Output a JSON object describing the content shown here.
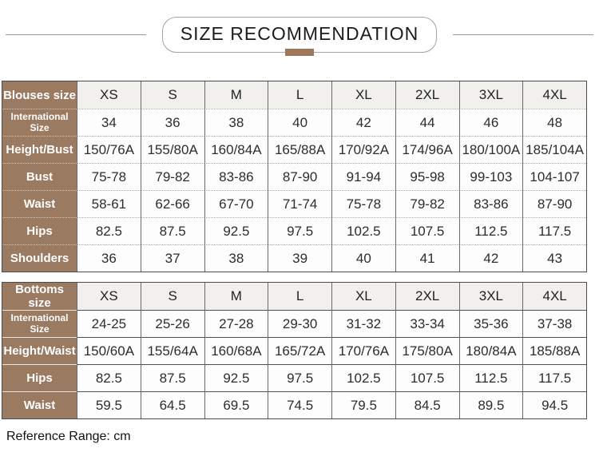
{
  "title": "SIZE RECOMMENDATION",
  "footer": "Reference Range: cm",
  "colors": {
    "brand_brown": "#9b7a62",
    "accent_bar_brown": "#a0765a",
    "size_header_bg": "#f1f0ed",
    "cell_bg": "#fdfdfd"
  },
  "blouses_table": {
    "header_label": "Blouses size",
    "sizes": [
      "XS",
      "S",
      "M",
      "L",
      "XL",
      "2XL",
      "3XL",
      "4XL"
    ],
    "rows": [
      {
        "label": "International Size",
        "values": [
          "34",
          "36",
          "38",
          "40",
          "42",
          "44",
          "46",
          "48"
        ]
      },
      {
        "label": "Height/Bust",
        "values": [
          "150/76A",
          "155/80A",
          "160/84A",
          "165/88A",
          "170/92A",
          "174/96A",
          "180/100A",
          "185/104A"
        ]
      },
      {
        "label": "Bust",
        "values": [
          "75-78",
          "79-82",
          "83-86",
          "87-90",
          "91-94",
          "95-98",
          "99-103",
          "104-107"
        ]
      },
      {
        "label": "Waist",
        "values": [
          "58-61",
          "62-66",
          "67-70",
          "71-74",
          "75-78",
          "79-82",
          "83-86",
          "87-90"
        ]
      },
      {
        "label": "Hips",
        "values": [
          "82.5",
          "87.5",
          "92.5",
          "97.5",
          "102.5",
          "107.5",
          "112.5",
          "117.5"
        ]
      },
      {
        "label": "Shoulders",
        "values": [
          "36",
          "37",
          "38",
          "39",
          "40",
          "41",
          "42",
          "43"
        ]
      }
    ]
  },
  "bottoms_table": {
    "header_label": "Bottoms size",
    "sizes": [
      "XS",
      "S",
      "M",
      "L",
      "XL",
      "2XL",
      "3XL",
      "4XL"
    ],
    "rows": [
      {
        "label": "International Size",
        "values": [
          "24-25",
          "25-26",
          "27-28",
          "29-30",
          "31-32",
          "33-34",
          "35-36",
          "37-38"
        ]
      },
      {
        "label": "Height/Waist",
        "values": [
          "150/60A",
          "155/64A",
          "160/68A",
          "165/72A",
          "170/76A",
          "175/80A",
          "180/84A",
          "185/88A"
        ]
      },
      {
        "label": "Hips",
        "values": [
          "82.5",
          "87.5",
          "92.5",
          "97.5",
          "102.5",
          "107.5",
          "112.5",
          "117.5"
        ]
      },
      {
        "label": "Waist",
        "values": [
          "59.5",
          "64.5",
          "69.5",
          "74.5",
          "79.5",
          "84.5",
          "89.5",
          "94.5"
        ]
      }
    ]
  }
}
